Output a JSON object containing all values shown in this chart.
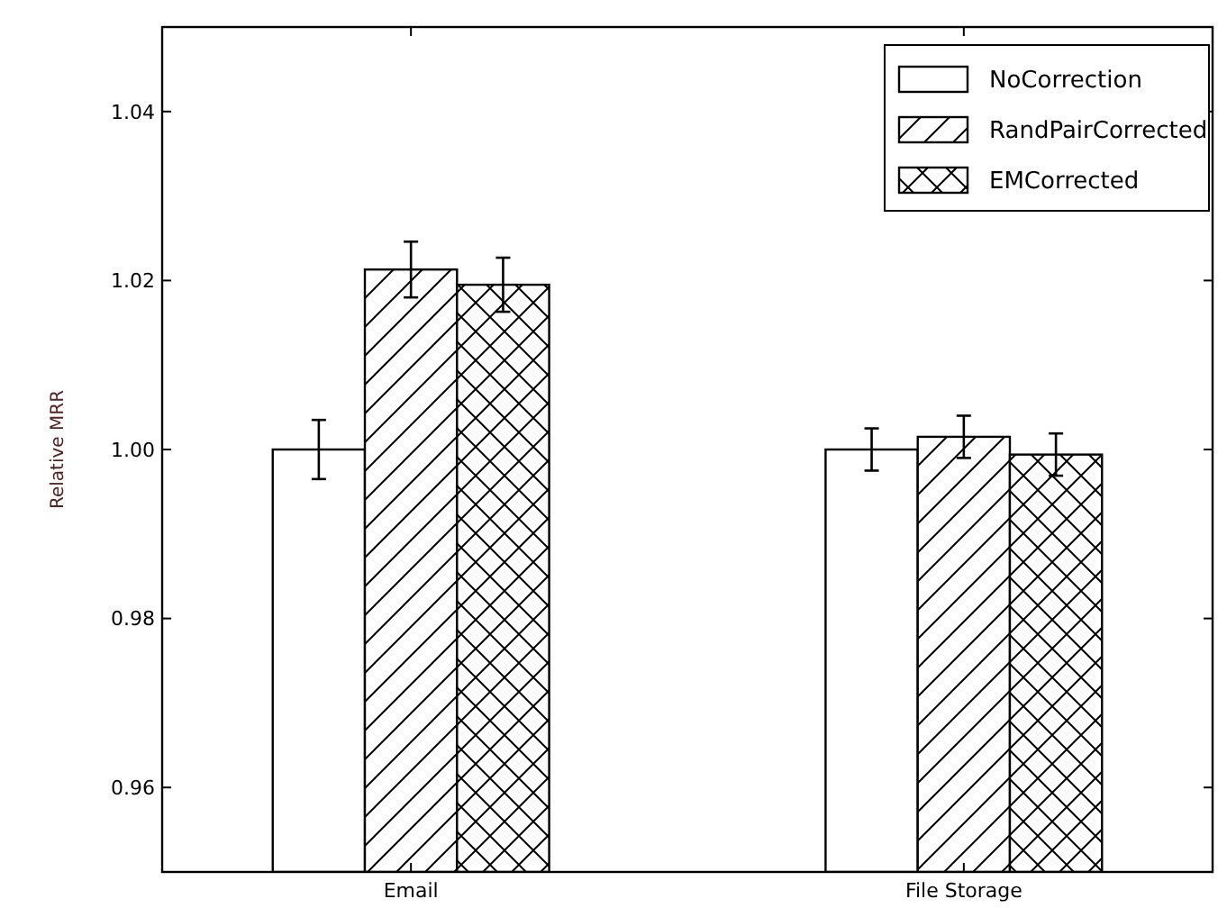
{
  "chart_data": {
    "type": "bar",
    "ylabel": "Relative MRR",
    "categories": [
      "Email",
      "File Storage"
    ],
    "series": [
      {
        "name": "NoCorrection",
        "color": "#ffffff",
        "values": [
          1.0,
          1.0
        ],
        "errors": [
          0.0035,
          0.0025
        ]
      },
      {
        "name": "RandPairCorrected",
        "color": "#ffffff",
        "values": [
          1.0213,
          1.0015
        ],
        "errors": [
          0.0033,
          0.0025
        ]
      },
      {
        "name": "EMCorrected",
        "color": "#ffffff",
        "values": [
          1.0195,
          0.9994
        ],
        "errors": [
          0.0032,
          0.0025
        ]
      }
    ],
    "ylim": [
      0.95,
      1.05
    ],
    "yticks": [
      {
        "value": 0.96,
        "label": "0.96"
      },
      {
        "value": 0.98,
        "label": "0.98"
      },
      {
        "value": 1.0,
        "label": "1.00"
      },
      {
        "value": 1.02,
        "label": "1.02"
      },
      {
        "value": 1.04,
        "label": "1.04"
      }
    ],
    "grid": false,
    "legend": "top right"
  }
}
